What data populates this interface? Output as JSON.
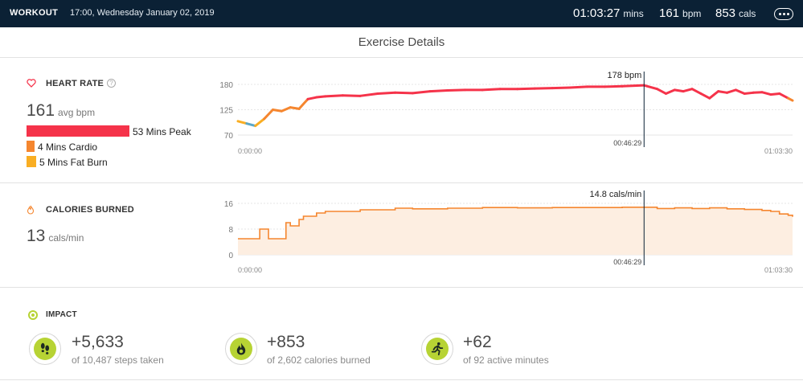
{
  "topbar": {
    "title": "WORKOUT",
    "date": "17:00, Wednesday January 02, 2019",
    "duration_value": "01:03:27",
    "duration_unit": "mins",
    "bpm_value": "161",
    "bpm_unit": "bpm",
    "cals_value": "853",
    "cals_unit": "cals",
    "background": "#0b2135"
  },
  "page_title": "Exercise Details",
  "heart_rate": {
    "label": "HEART RATE",
    "help": "?",
    "avg_value": "161",
    "avg_unit": "avg bpm",
    "zones": [
      {
        "label": "53 Mins Peak",
        "minutes": 53,
        "color": "#f5334a"
      },
      {
        "label": "4 Mins Cardio",
        "minutes": 4,
        "color": "#f5862f"
      },
      {
        "label": "5 Mins Fat Burn",
        "minutes": 5,
        "color": "#f9ae23"
      }
    ]
  },
  "calories": {
    "label": "CALORIES BURNED",
    "value": "13",
    "unit": "cals/min"
  },
  "impact": {
    "label": "IMPACT",
    "items": [
      {
        "value": "+5,633",
        "sub": "of 10,487 steps taken",
        "icon": "footsteps-icon"
      },
      {
        "value": "+853",
        "sub": "of 2,602 calories burned",
        "icon": "flame-icon"
      },
      {
        "value": "+62",
        "sub": "of 92 active minutes",
        "icon": "runner-icon"
      }
    ],
    "accent": "#b7d334"
  },
  "chart_data": [
    {
      "type": "line",
      "ylim": [
        70,
        180
      ],
      "ytick_labels": [
        "180",
        "125",
        "70"
      ],
      "xtick_labels": [
        "0:00:00",
        "01:03:30"
      ],
      "cursor": {
        "x_label": "00:46:29",
        "value_label": "178 bpm"
      },
      "series": [
        {
          "x": [
            0,
            1,
            2,
            3,
            4,
            5,
            6,
            7,
            8,
            9,
            10,
            12,
            14,
            16,
            18,
            20,
            22,
            24,
            26,
            28,
            30,
            32,
            34,
            36,
            38,
            40,
            42,
            44,
            46.5,
            48,
            49,
            50,
            51,
            52,
            53,
            54,
            55,
            56,
            57,
            58,
            59,
            60,
            61,
            62,
            63,
            63.5
          ],
          "y": [
            100,
            95,
            90,
            105,
            125,
            122,
            130,
            127,
            148,
            152,
            154,
            156,
            155,
            160,
            162,
            161,
            165,
            167,
            168,
            168,
            170,
            170,
            171,
            172,
            173,
            175,
            175,
            176,
            178,
            170,
            160,
            168,
            165,
            170,
            160,
            150,
            165,
            162,
            168,
            160,
            162,
            163,
            158,
            160,
            150,
            145
          ]
        }
      ]
    },
    {
      "type": "area",
      "ylim": [
        0,
        16
      ],
      "ytick_labels": [
        "16",
        "8",
        "0"
      ],
      "xtick_labels": [
        "0:00:00",
        "01:03:30"
      ],
      "cursor": {
        "x_label": "00:46:29",
        "value_label": "14.8 cals/min"
      },
      "series": [
        {
          "x": [
            0,
            1.5,
            2.5,
            3,
            3.5,
            4.5,
            5.5,
            6,
            7,
            7.5,
            8,
            9,
            10,
            12,
            14,
            16,
            18,
            20,
            24,
            28,
            32,
            36,
            40,
            44,
            46.5,
            48,
            50,
            52,
            54,
            56,
            58,
            60,
            61,
            62,
            63,
            63.5
          ],
          "y": [
            5,
            5,
            8,
            8,
            5,
            5,
            10,
            9,
            11,
            12,
            12,
            13,
            13.5,
            13.5,
            14,
            14,
            14.5,
            14.3,
            14.5,
            14.7,
            14.6,
            14.7,
            14.7,
            14.8,
            14.8,
            14.4,
            14.6,
            14.4,
            14.6,
            14.3,
            14.1,
            13.8,
            13.5,
            12.7,
            12.3,
            11.8
          ]
        }
      ]
    }
  ]
}
